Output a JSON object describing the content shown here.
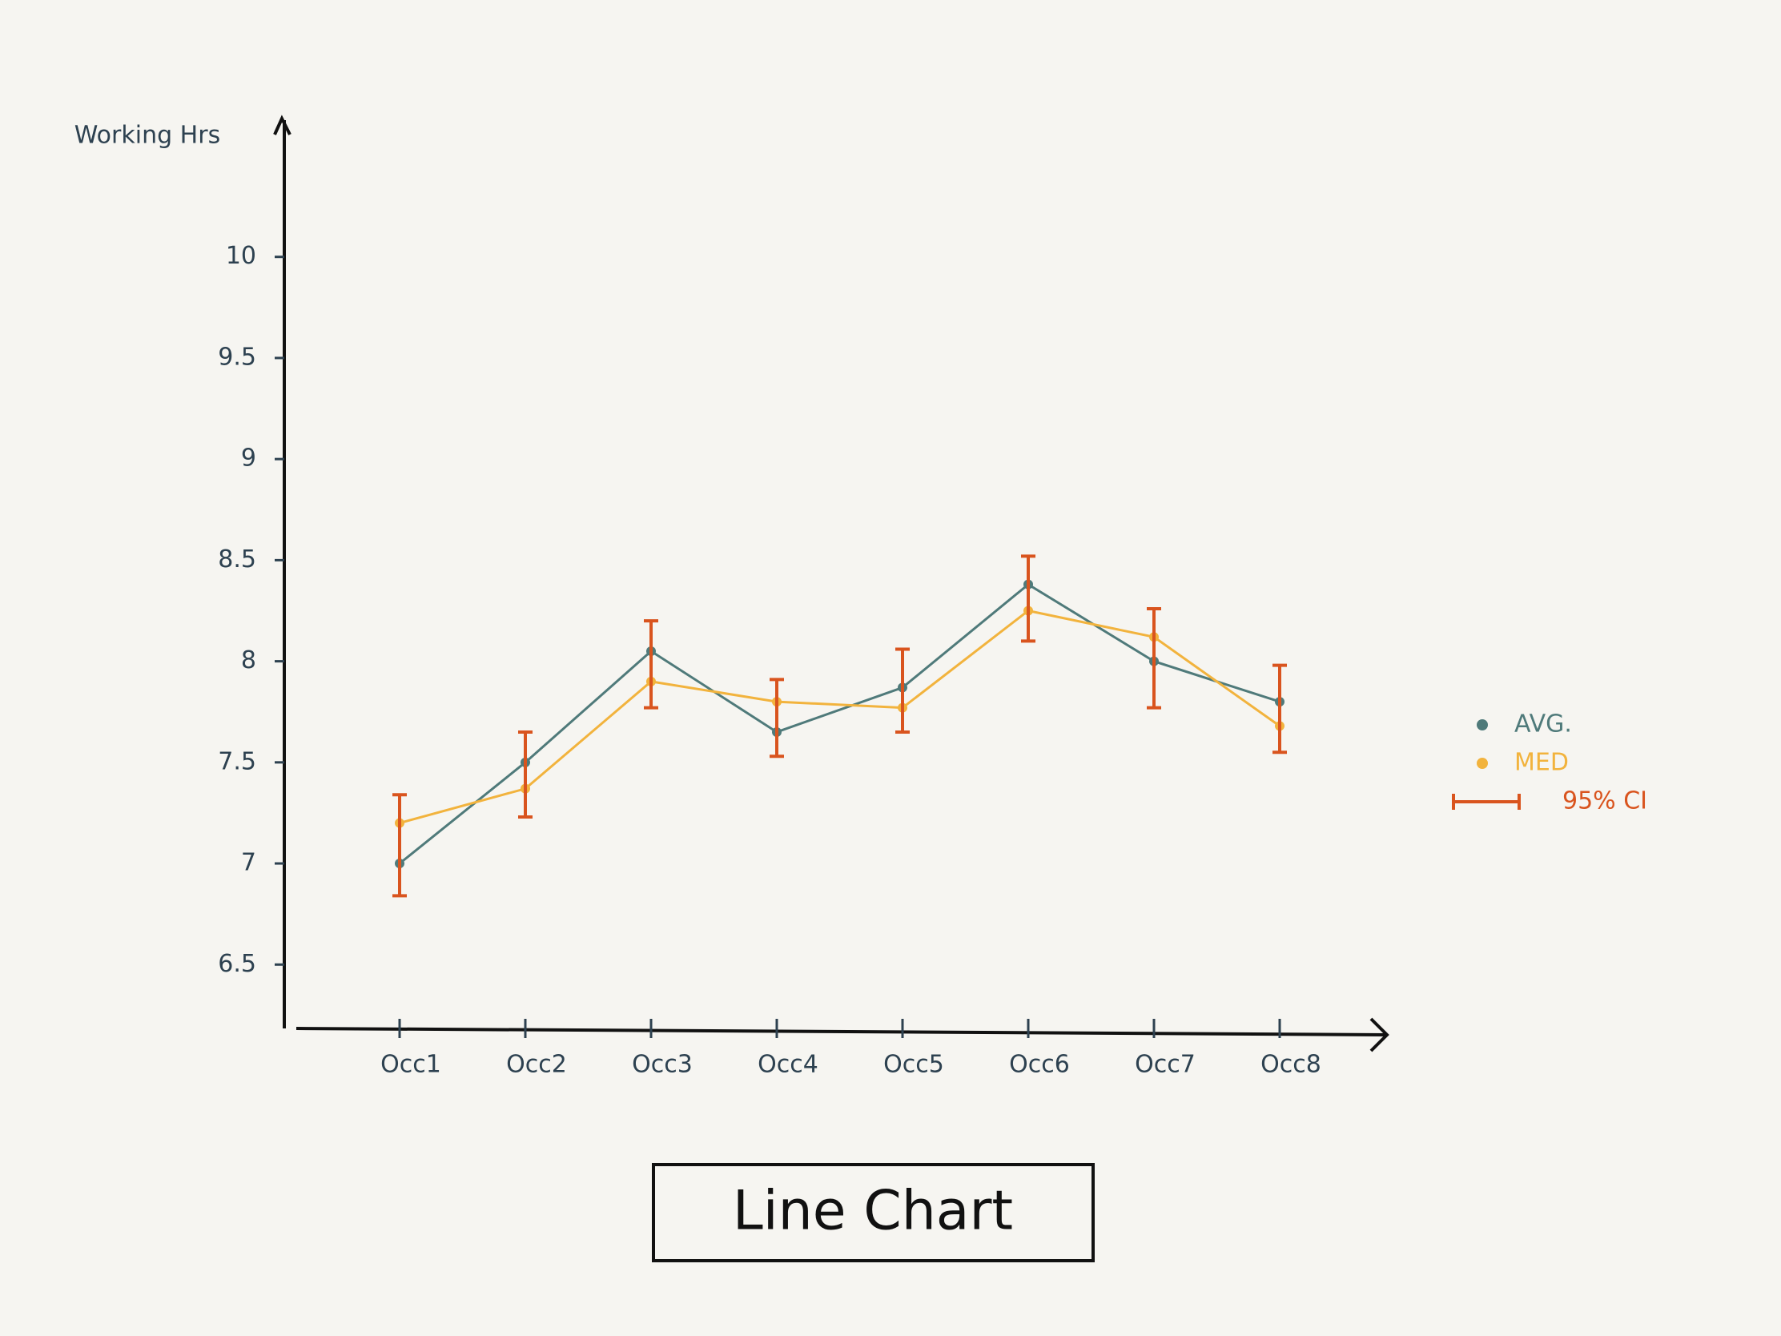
{
  "chart_data": {
    "type": "line",
    "title": "Line Chart",
    "y_label": "Working Hrs",
    "categories": [
      "Occ1",
      "Occ2",
      "Occ3",
      "Occ4",
      "Occ5",
      "Occ6",
      "Occ7",
      "Occ8"
    ],
    "series": [
      {
        "name": "AVG.",
        "color": "#4f7a7a",
        "values": [
          7.0,
          7.5,
          8.05,
          7.65,
          7.87,
          8.38,
          8.0,
          7.8
        ]
      },
      {
        "name": "MED",
        "color": "#f2b33d",
        "values": [
          7.2,
          7.37,
          7.9,
          7.8,
          7.77,
          8.25,
          8.12,
          7.68
        ]
      },
      {
        "name": "95% CI",
        "color": "#d9541e",
        "low": [
          6.84,
          7.23,
          7.77,
          7.53,
          7.65,
          8.1,
          7.77,
          7.55
        ],
        "high": [
          7.34,
          7.65,
          8.2,
          7.91,
          8.06,
          8.52,
          8.26,
          7.98
        ]
      }
    ],
    "ylim": [
      6.2,
      10.7
    ],
    "yticks": [
      6.5,
      7,
      7.5,
      8,
      8.5,
      9,
      9.5,
      10
    ],
    "grid": false,
    "legend": "right"
  }
}
